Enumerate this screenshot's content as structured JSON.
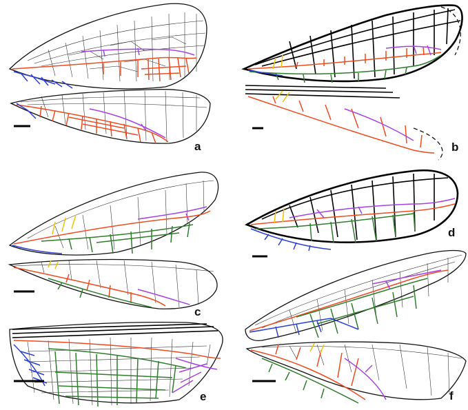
{
  "figure": {
    "panels": [
      {
        "id": "a",
        "label": "a"
      },
      {
        "id": "b",
        "label": "b"
      },
      {
        "id": "c",
        "label": "c"
      },
      {
        "id": "d",
        "label": "d"
      },
      {
        "id": "e",
        "label": "e"
      },
      {
        "id": "f",
        "label": "f"
      }
    ],
    "vein_colors": {
      "orange": "#f04a1e",
      "purple": "#a640e6",
      "blue": "#2a3fd6",
      "green": "#2e7d2a",
      "yellow": "#f2c200"
    }
  }
}
